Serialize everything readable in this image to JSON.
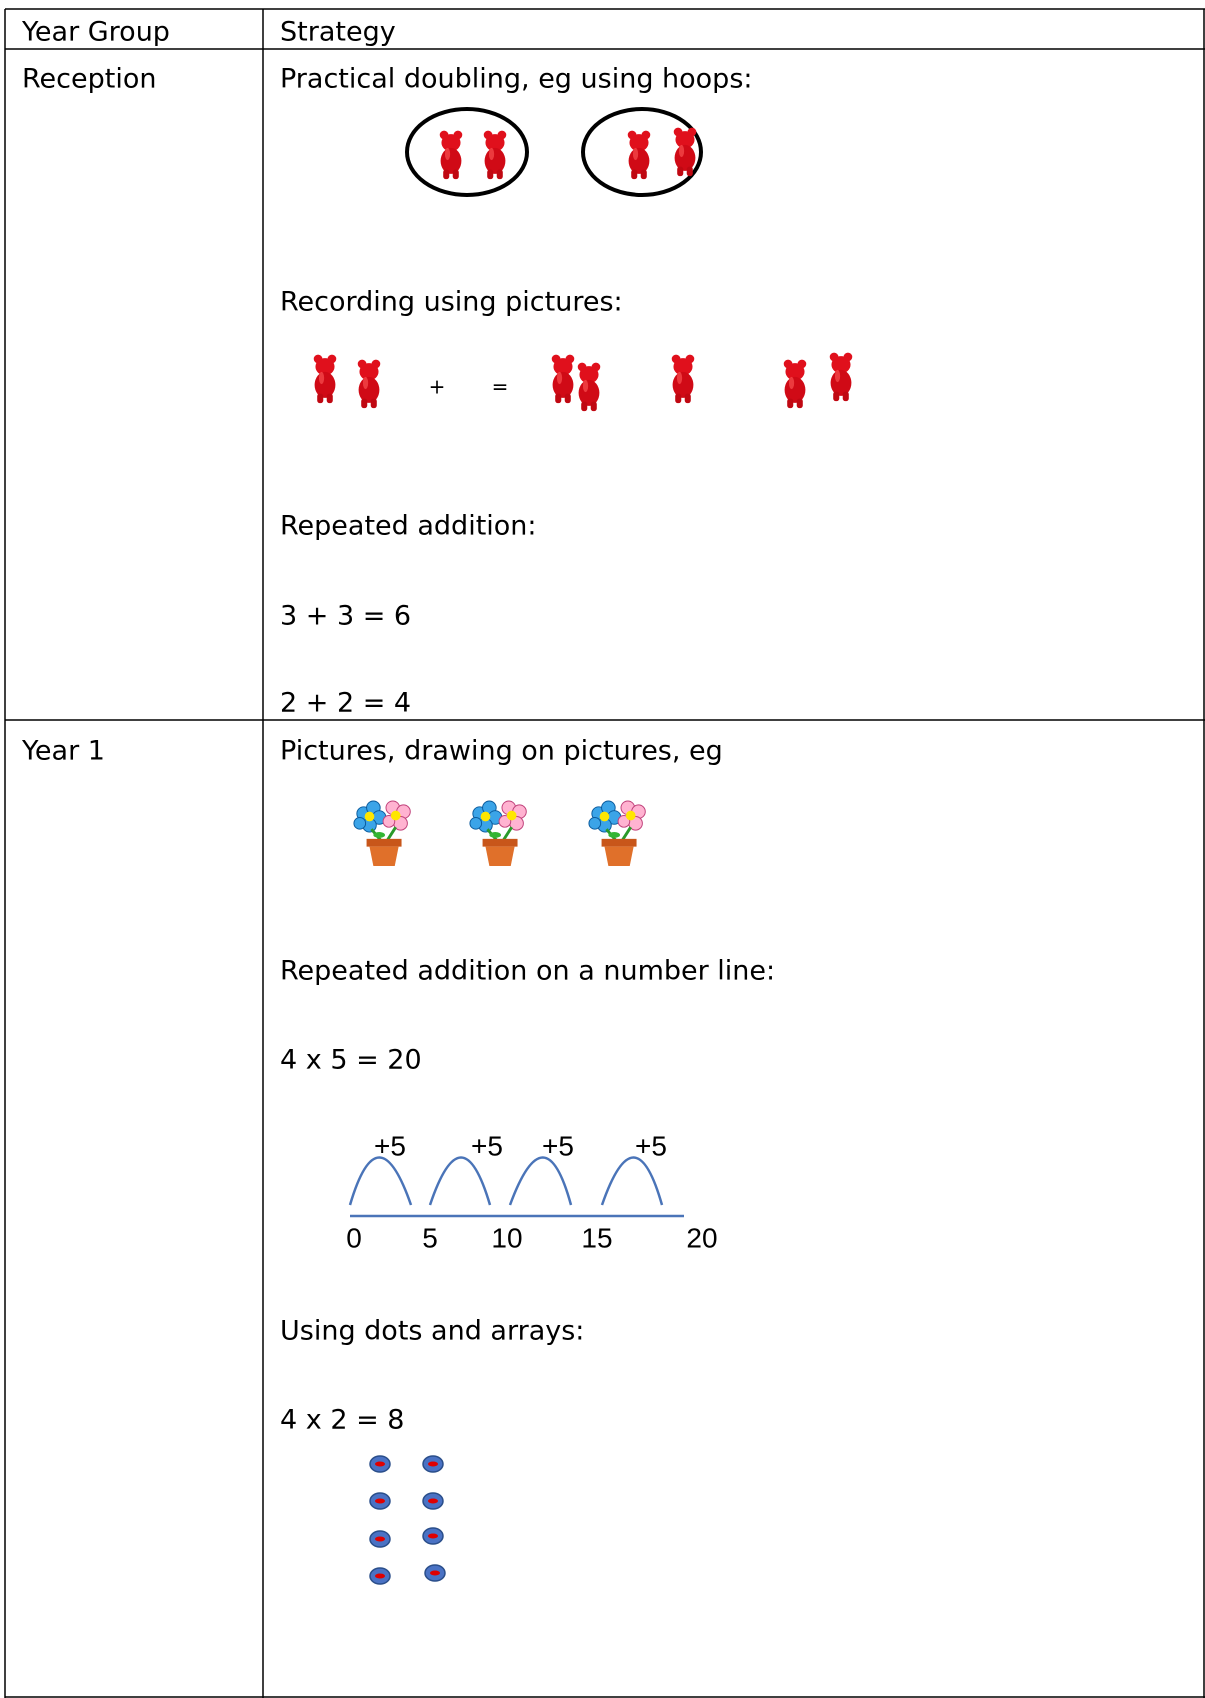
{
  "table": {
    "header": [
      "Year Group",
      "Strategy"
    ],
    "rows": [
      {
        "year": "Reception",
        "doubling": "Practical doubling, eg using hoops:",
        "recording": "Recording using pictures:",
        "plus": "+",
        "equals": "=",
        "repeated": "Repeated addition:",
        "sums": [
          "3 + 3 = 6",
          "2 + 2 = 4"
        ]
      },
      {
        "year": "Year 1",
        "pictures": "Pictures, drawing on pictures, eg",
        "number_line_heading": "Repeated addition on a number line:",
        "number_line_sum": "4 x 5 = 20",
        "jumps": [
          "+5",
          "+5",
          "+5",
          "+5"
        ],
        "number_line_labels": [
          "0",
          "5",
          "10",
          "15",
          "20"
        ],
        "arrays_heading": "Using dots and arrays:",
        "arrays_sum": "4 x 2 = 8"
      }
    ]
  }
}
